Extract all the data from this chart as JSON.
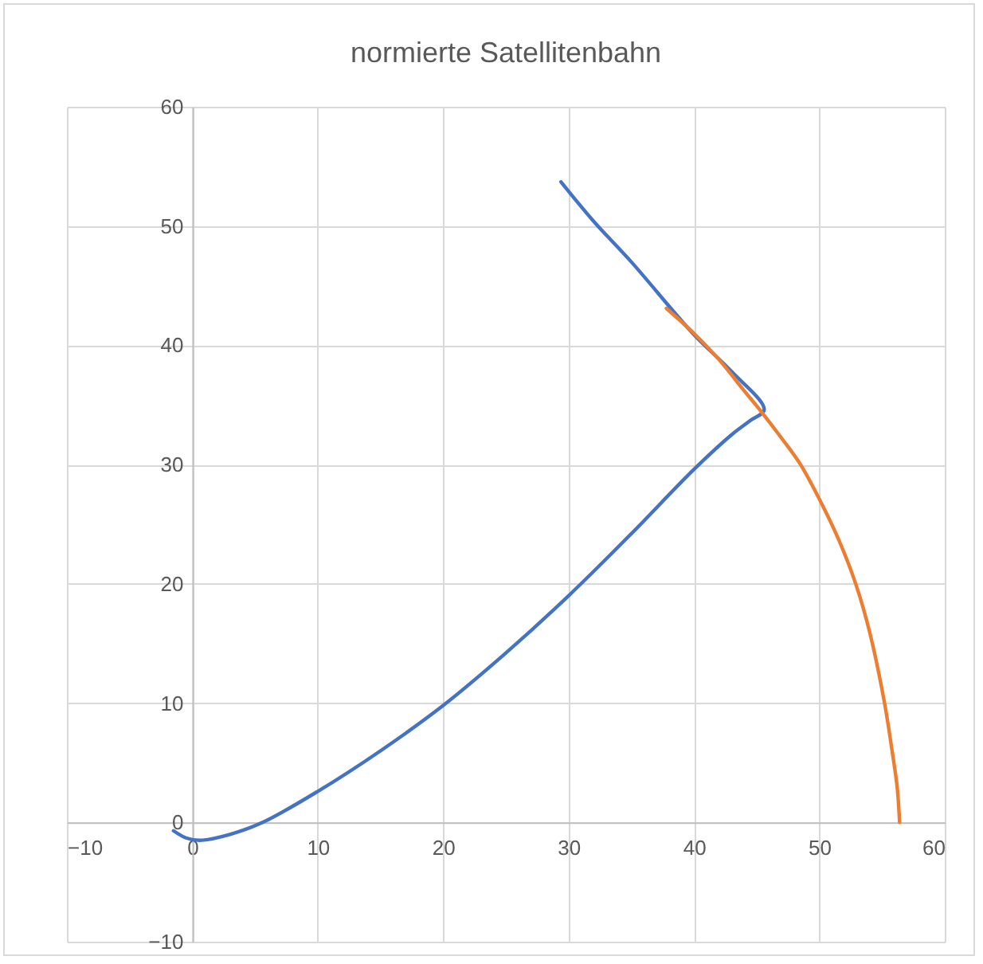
{
  "chart_data": {
    "type": "line",
    "title": "normierte Satellitenbahn",
    "series": [
      {
        "color": "#4472c4",
        "x": [
          -1.5,
          -0.5,
          0.6,
          3,
          5.6,
          10,
          15,
          20,
          25,
          30,
          35,
          40,
          43,
          44.5,
          45.6,
          43,
          40,
          35,
          32,
          29.4
        ],
        "values": [
          -0.7,
          -1.3,
          -1.5,
          -1.0,
          0,
          2.6,
          6.0,
          9.8,
          14.2,
          19.0,
          24.2,
          29.6,
          32.5,
          33.7,
          34.6,
          37.8,
          40.9,
          47.0,
          50.4,
          53.7
        ]
      },
      {
        "color": "#ed7d31",
        "x": [
          37.8,
          40,
          42,
          44,
          45.4,
          47,
          48.5,
          50,
          51.5,
          52.9,
          54,
          55.2,
          55.8,
          56.2,
          56.4
        ],
        "values": [
          43.1,
          41.0,
          38.8,
          36.2,
          34.4,
          32.2,
          30.0,
          27.1,
          23.8,
          20,
          16,
          10,
          6,
          3,
          0
        ]
      }
    ],
    "xlim": [
      -10,
      60
    ],
    "xticks": [
      -10,
      0,
      10,
      20,
      30,
      40,
      50,
      60
    ],
    "ylim": [
      -10,
      60
    ],
    "yticks": [
      -10,
      0,
      10,
      20,
      30,
      40,
      50,
      60
    ],
    "grid": true,
    "legend": false,
    "marker": "none",
    "line_style": "solid"
  }
}
